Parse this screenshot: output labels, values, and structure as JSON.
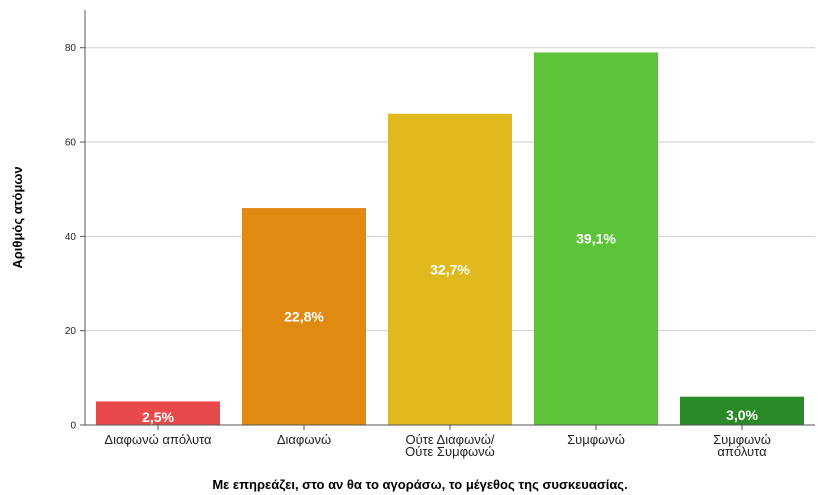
{
  "chart_data": {
    "type": "bar",
    "categories": [
      [
        "Διαφωνώ απόλυτα"
      ],
      [
        "Διαφωνώ"
      ],
      [
        "Ούτε Διαφωνώ/",
        "Ούτε Συμφωνώ"
      ],
      [
        "Συμφωνώ"
      ],
      [
        "Συμφωνώ",
        "απόλυτα"
      ]
    ],
    "values": [
      5,
      46,
      66,
      79,
      6
    ],
    "data_labels": [
      "2,5%",
      "22,8%",
      "32,7%",
      "39,1%",
      "3,0%"
    ],
    "colors": [
      "#e8494b",
      "#e08a11",
      "#e0b91f",
      "#5dc43a",
      "#2a8a28"
    ],
    "xlabel": "Με επηρεάζει, στο αν θα το αγοράσω, το μέγεθος της συσκευασίας.",
    "ylabel": "Αριθμός ατόμων",
    "ylim": [
      0,
      88
    ],
    "yticks": [
      0,
      20,
      40,
      60,
      80
    ],
    "grid": true
  }
}
